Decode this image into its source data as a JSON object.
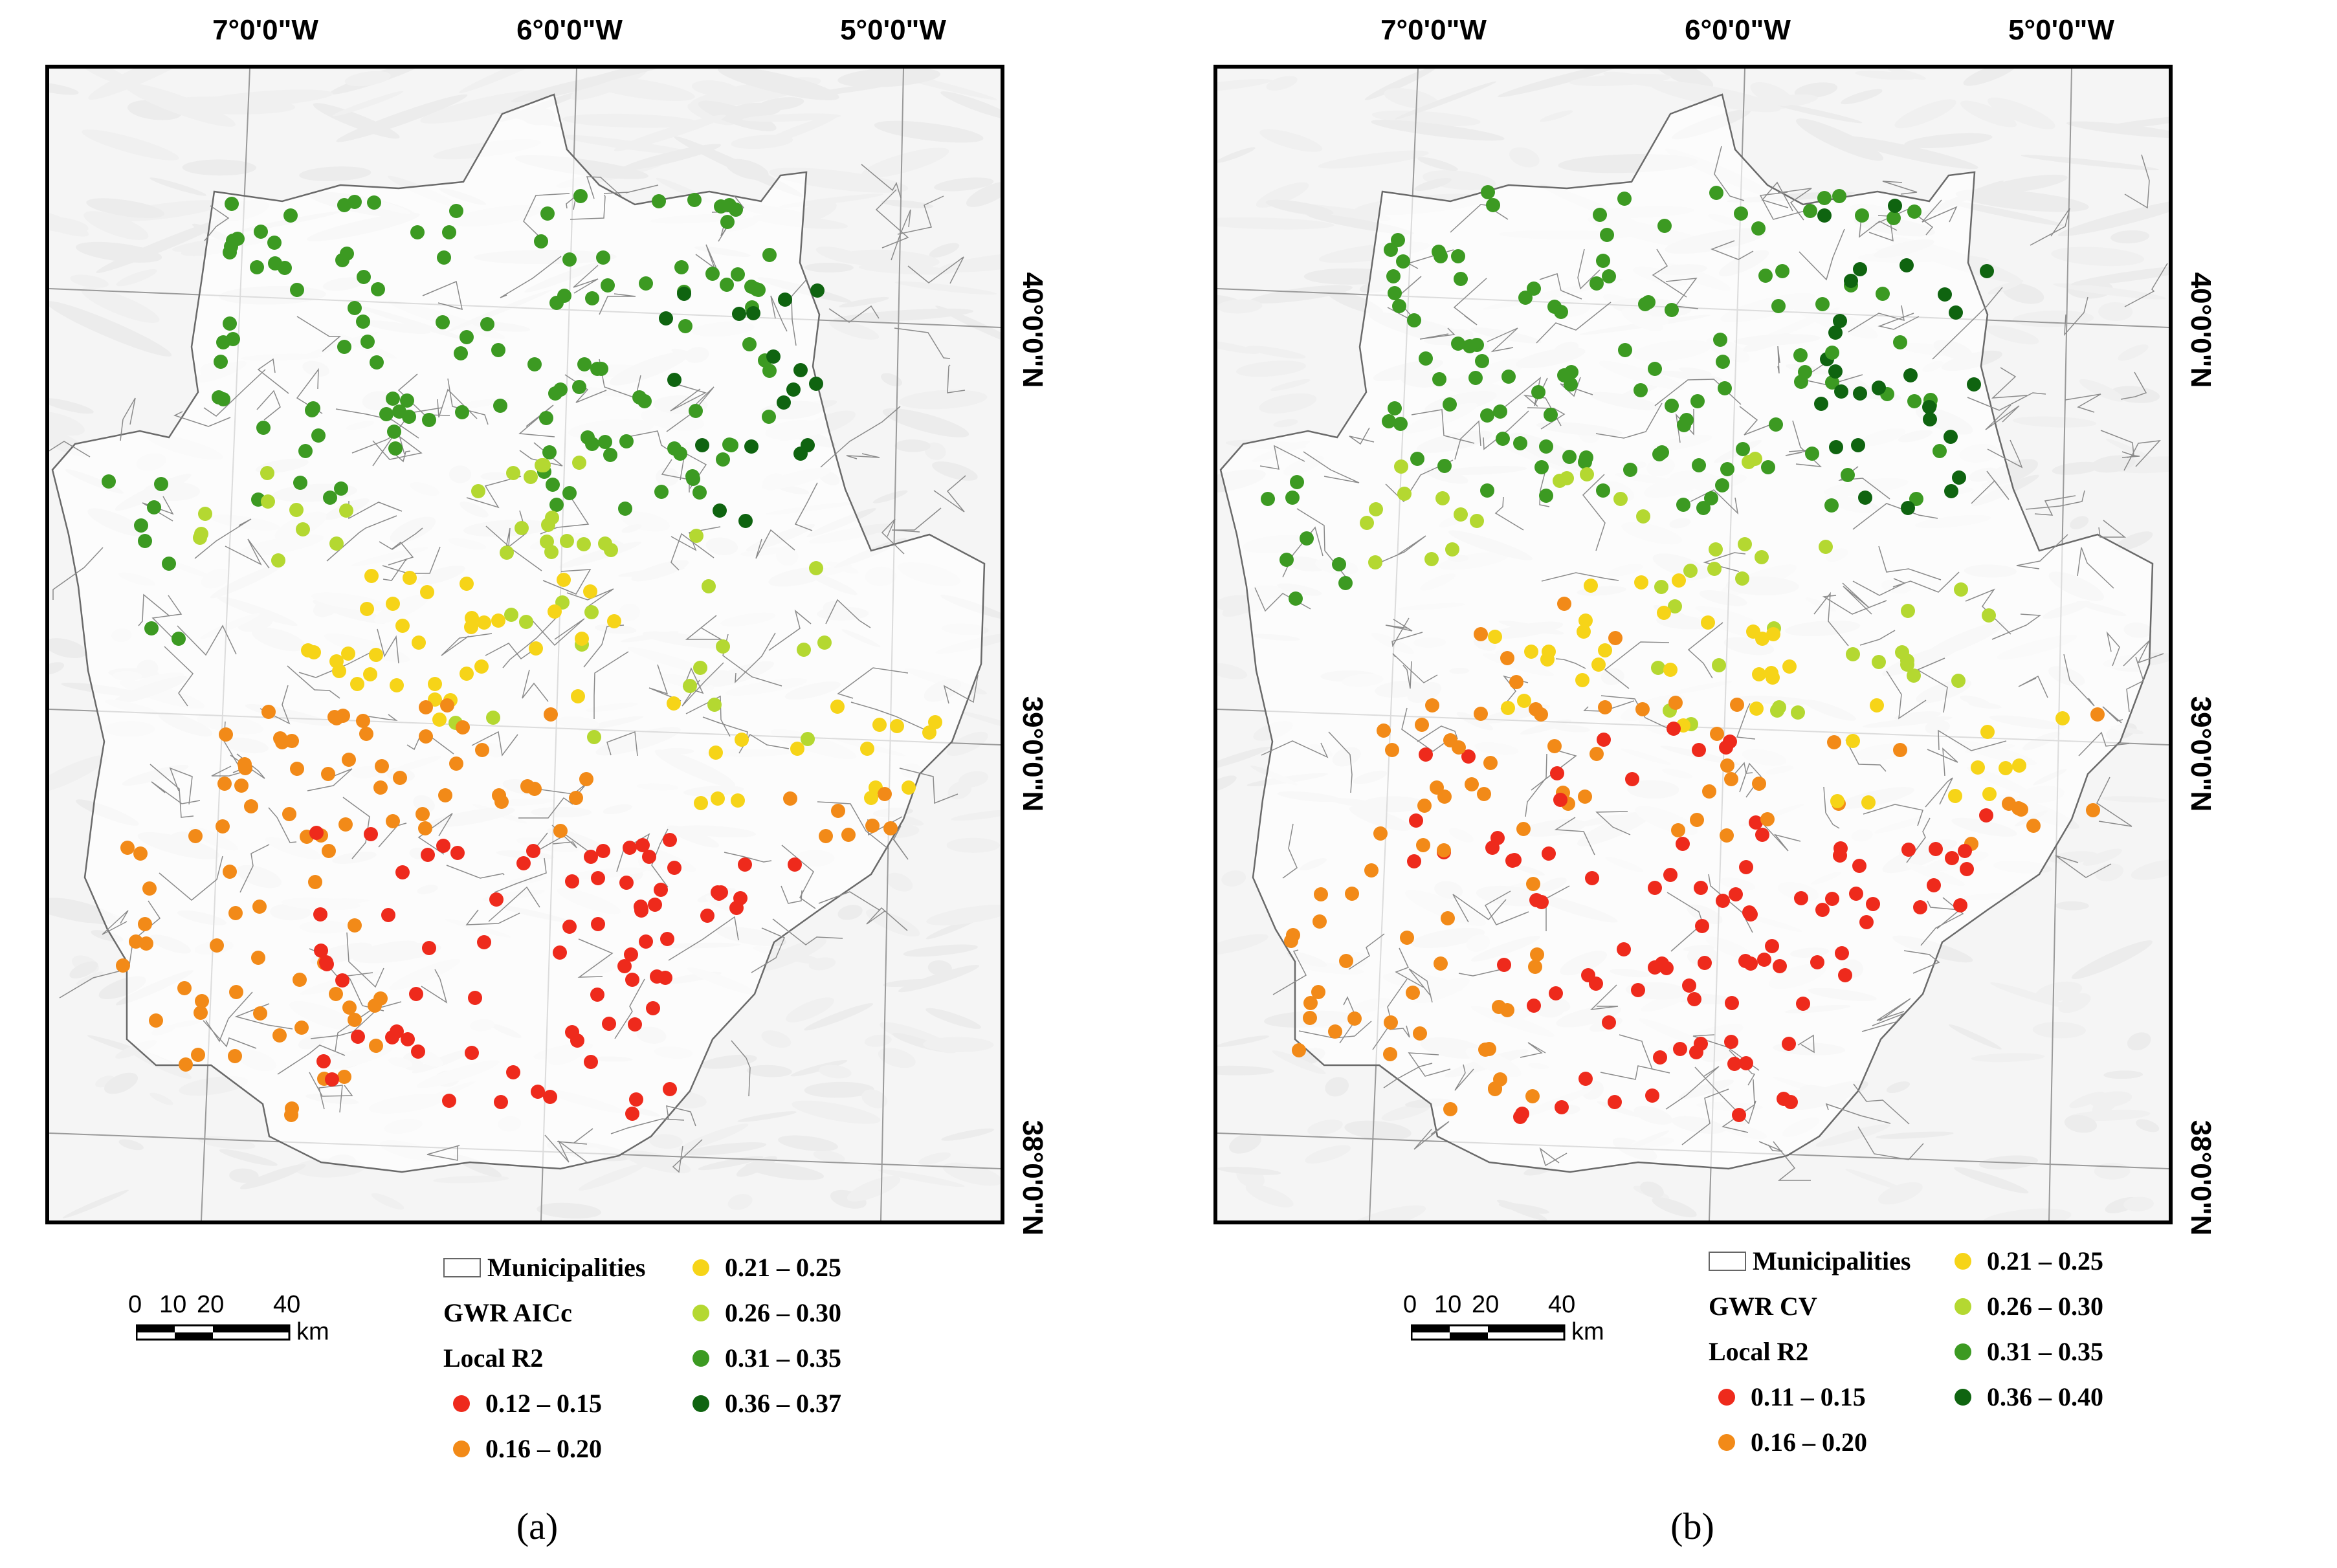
{
  "colors": {
    "c1": "#ee2a1c",
    "c2": "#f28a18",
    "c3": "#f6d418",
    "c4": "#b4d831",
    "c5": "#3c9a22",
    "c6": "#0f6410"
  },
  "longitude_labels": [
    "7°0'0\"W",
    "6°0'0\"W",
    "5°0'0\"W"
  ],
  "latitude_labels": [
    "40°0'0\"N",
    "39°0'0\"N",
    "38°0'0\"N"
  ],
  "scale_bar": {
    "ticks": [
      "0",
      "10",
      "20",
      "40"
    ],
    "unit": "km"
  },
  "panels": [
    {
      "label": "(a)",
      "legend": {
        "boundary_label": "Municipalities",
        "model_label": "GWR AICc",
        "metric_label": "Local R2",
        "classes": [
          {
            "range": "0.12 – 0.15",
            "color": "#ee2a1c"
          },
          {
            "range": "0.16 – 0.20",
            "color": "#f28a18"
          },
          {
            "range": "0.21 – 0.25",
            "color": "#f6d418"
          },
          {
            "range": "0.26 – 0.30",
            "color": "#b4d831"
          },
          {
            "range": "0.31 – 0.35",
            "color": "#3c9a22"
          },
          {
            "range": "0.36 – 0.37",
            "color": "#0f6410"
          }
        ]
      }
    },
    {
      "label": "(b)",
      "legend": {
        "boundary_label": "Municipalities",
        "model_label": "GWR CV",
        "metric_label": "Local R2",
        "classes": [
          {
            "range": "0.11 – 0.15",
            "color": "#ee2a1c"
          },
          {
            "range": "0.16 – 0.20",
            "color": "#f28a18"
          },
          {
            "range": "0.21 – 0.25",
            "color": "#f6d418"
          },
          {
            "range": "0.26 – 0.30",
            "color": "#b4d831"
          },
          {
            "range": "0.31 – 0.35",
            "color": "#3c9a22"
          },
          {
            "range": "0.36 – 0.40",
            "color": "#0f6410"
          }
        ]
      }
    }
  ]
}
